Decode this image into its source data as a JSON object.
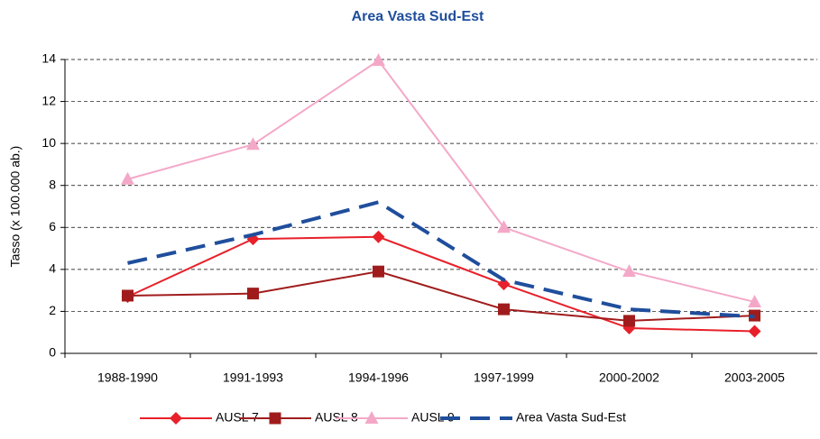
{
  "chart_data": {
    "type": "line",
    "title": "Area Vasta Sud-Est",
    "y_label": "Tasso (x 100.000 ab.)",
    "categories": [
      "1988-1990",
      "1991-1993",
      "1994-1996",
      "1997-1999",
      "2000-2002",
      "2003-2005"
    ],
    "series": [
      {
        "name": "AUSL 7",
        "color": "#e8202a",
        "marker": "diamond",
        "values": [
          2.7,
          5.45,
          5.55,
          3.3,
          1.2,
          1.05
        ]
      },
      {
        "name": "AUSL 8",
        "color": "#a01c1c",
        "marker": "square",
        "values": [
          2.75,
          2.85,
          3.9,
          2.1,
          1.55,
          1.8
        ]
      },
      {
        "name": "AUSL 9",
        "color": "#f4a8c8",
        "marker": "triangle",
        "values": [
          8.3,
          9.95,
          13.95,
          6.0,
          3.9,
          2.45
        ]
      },
      {
        "name": "Area Vasta Sud-Est",
        "color": "#1f4e9c",
        "marker": "none",
        "dashed": true,
        "values": [
          4.3,
          5.65,
          7.2,
          3.5,
          2.1,
          1.75
        ]
      }
    ],
    "ylim": [
      0,
      14
    ],
    "yticks": [
      0,
      2,
      4,
      6,
      8,
      10,
      12,
      14
    ],
    "grid": true
  }
}
